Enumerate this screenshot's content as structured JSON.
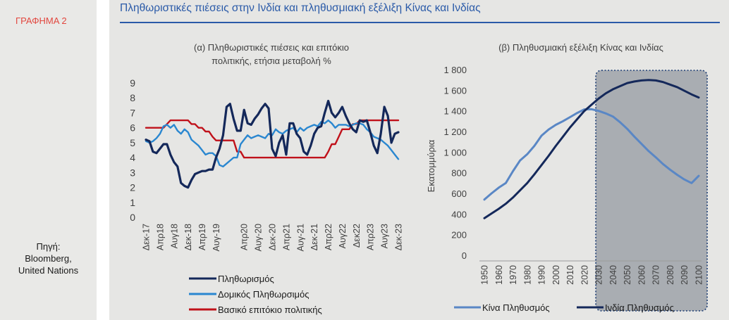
{
  "figure_label": "ΓΡΑΦΗΜΑ 2",
  "main_title": "Πληθωριστικές πιέσεις στην Ινδία και πληθυσμιακή εξέλιξη Κίνας και Ινδίας",
  "source": {
    "line1": "Πηγή:",
    "line2": "Bloomberg,",
    "line3": "United Nations"
  },
  "colors": {
    "dark_navy": "#14285a",
    "light_blue": "#2a87d0",
    "red": "#c0111a",
    "proj_blue": "#5a87c5",
    "title_blue": "#2a5aa8",
    "label_red": "#e2473f",
    "shade": "#a9adb2"
  },
  "chart_data": [
    {
      "type": "line",
      "title": "(α) Πληθωριστικές πιέσεις και επιτόκιο πολιτικής, ετήσια μεταβολή %",
      "title_line1": "(α) Πληθωριστικές πιέσεις και επιτόκιο",
      "title_line2": "πολιτικής, ετήσια μεταβολή %",
      "ylim": [
        0,
        9
      ],
      "yticks": [
        0,
        1,
        2,
        3,
        4,
        5,
        6,
        7,
        8,
        9
      ],
      "x_labels": [
        "Δεκ-17",
        "Απρ18",
        "Αυγ18",
        "Δεκ-18",
        "Απρ19",
        "Αυγ-19",
        "Απρ20",
        "Αυγ-20",
        "Δεκ-20",
        "Απρ21",
        "Αυγ-21",
        "Δεκ-21",
        "Απρ22",
        "Αυγ22",
        "Δεκ22",
        "Απρ23",
        "Αυγ23",
        "Δεκ-23"
      ],
      "x_label_months": [
        0,
        4,
        8,
        12,
        16,
        20,
        28,
        32,
        36,
        40,
        44,
        48,
        52,
        56,
        60,
        64,
        68,
        72
      ],
      "months_total": 72,
      "series": [
        {
          "name": "Πληθωρισμός",
          "color": "#14285a",
          "width": 3.2,
          "values": [
            5.2,
            5.1,
            4.4,
            4.3,
            4.6,
            4.9,
            4.9,
            4.2,
            3.7,
            3.4,
            2.3,
            2.1,
            2.0,
            2.5,
            2.9,
            3.0,
            3.1,
            3.1,
            3.2,
            3.2,
            4.0,
            4.6,
            5.5,
            7.4,
            7.6,
            6.6,
            5.8,
            5.8,
            7.2,
            6.3,
            6.2,
            6.6,
            6.9,
            7.3,
            7.6,
            7.3,
            4.6,
            4.1,
            5.0,
            5.5,
            4.2,
            6.3,
            6.3,
            5.6,
            5.3,
            4.4,
            4.2,
            4.8,
            5.6,
            6.0,
            6.1,
            7.0,
            7.8,
            7.0,
            6.7,
            7.0,
            7.4,
            6.8,
            6.3,
            5.9,
            5.7,
            6.5,
            6.4,
            6.5,
            5.7,
            4.8,
            4.3,
            5.6,
            7.4,
            6.8,
            5.0,
            5.6,
            5.7
          ]
        },
        {
          "name": "Δομικός Πληθωρσιμός",
          "color": "#2a87d0",
          "width": 2.4,
          "values": [
            5.1,
            5.0,
            5.1,
            5.3,
            5.6,
            6.1,
            6.2,
            6.0,
            6.2,
            5.8,
            5.6,
            5.9,
            5.7,
            5.2,
            5.0,
            4.8,
            4.5,
            4.2,
            4.3,
            4.3,
            4.1,
            3.5,
            3.4,
            3.6,
            3.8,
            4.0,
            4.0,
            4.9,
            5.2,
            5.5,
            5.3,
            5.4,
            5.5,
            5.4,
            5.3,
            5.6,
            5.5,
            5.9,
            5.7,
            5.6,
            5.8,
            5.9,
            6.0,
            5.7,
            6.0,
            5.8,
            6.0,
            6.1,
            6.2,
            6.1,
            6.4,
            6.3,
            6.5,
            6.3,
            6.0,
            6.2,
            6.2,
            6.2,
            6.1,
            6.2,
            6.3,
            6.3,
            6.2,
            5.9,
            5.7,
            5.4,
            5.3,
            5.2,
            5.0,
            4.8,
            4.5,
            4.2,
            3.9
          ]
        },
        {
          "name": "Βασικό επιτόκιο πολιτικής",
          "color": "#c0111a",
          "width": 2.4,
          "values": [
            6.0,
            6.0,
            6.0,
            6.0,
            6.0,
            6.0,
            6.25,
            6.5,
            6.5,
            6.5,
            6.5,
            6.5,
            6.5,
            6.25,
            6.25,
            6.0,
            6.0,
            5.75,
            5.75,
            5.4,
            5.15,
            5.15,
            5.15,
            5.15,
            5.15,
            5.15,
            4.4,
            4.4,
            4.0,
            4.0,
            4.0,
            4.0,
            4.0,
            4.0,
            4.0,
            4.0,
            4.0,
            4.0,
            4.0,
            4.0,
            4.0,
            4.0,
            4.0,
            4.0,
            4.0,
            4.0,
            4.0,
            4.0,
            4.0,
            4.0,
            4.0,
            4.0,
            4.4,
            4.9,
            4.9,
            5.4,
            5.9,
            5.9,
            5.9,
            6.25,
            6.25,
            6.5,
            6.5,
            6.5,
            6.5,
            6.5,
            6.5,
            6.5,
            6.5,
            6.5,
            6.5,
            6.5,
            6.5
          ]
        }
      ],
      "legend_position": "bottom"
    },
    {
      "type": "line",
      "title": "(β) Πληθυσμιακή εξέλιξη Κίνας και Ινδίας",
      "ylabel": "Εκατομμύρια",
      "ylim": [
        0,
        1800
      ],
      "yticks": [
        0,
        200,
        400,
        600,
        800,
        1000,
        1200,
        1400,
        1600,
        1800
      ],
      "ytick_labels": [
        "0",
        "200",
        "400",
        "600",
        "800",
        "1 000",
        "1 200",
        "1 400",
        "1 600",
        "1 800"
      ],
      "x": [
        1950,
        1955,
        1960,
        1965,
        1970,
        1975,
        1980,
        1985,
        1990,
        1995,
        2000,
        2005,
        2010,
        2015,
        2020,
        2025,
        2030,
        2035,
        2040,
        2045,
        2050,
        2055,
        2060,
        2065,
        2070,
        2075,
        2080,
        2085,
        2090,
        2095,
        2100
      ],
      "xticks": [
        1950,
        1960,
        1970,
        1980,
        1990,
        2000,
        2010,
        2020,
        2030,
        2040,
        2050,
        2060,
        2070,
        2080,
        2090,
        2100
      ],
      "xlim": [
        1950,
        2100
      ],
      "projection_shade": [
        2028,
        2102
      ],
      "series": [
        {
          "name": "Κίνα Πληθυσμός",
          "color": "#5a87c5",
          "values": [
            540,
            600,
            655,
            700,
            815,
            920,
            980,
            1060,
            1160,
            1220,
            1265,
            1300,
            1340,
            1380,
            1415,
            1416,
            1400,
            1375,
            1345,
            1290,
            1225,
            1150,
            1080,
            1010,
            950,
            885,
            830,
            780,
            735,
            700,
            770
          ]
        },
        {
          "name": "Ινδία Πληθυσμός",
          "color": "#14285a",
          "values": [
            360,
            405,
            450,
            500,
            560,
            630,
            700,
            785,
            875,
            965,
            1060,
            1150,
            1240,
            1320,
            1400,
            1460,
            1520,
            1570,
            1610,
            1640,
            1670,
            1685,
            1695,
            1700,
            1695,
            1680,
            1655,
            1630,
            1595,
            1560,
            1530
          ]
        }
      ],
      "legend_position": "bottom"
    }
  ]
}
